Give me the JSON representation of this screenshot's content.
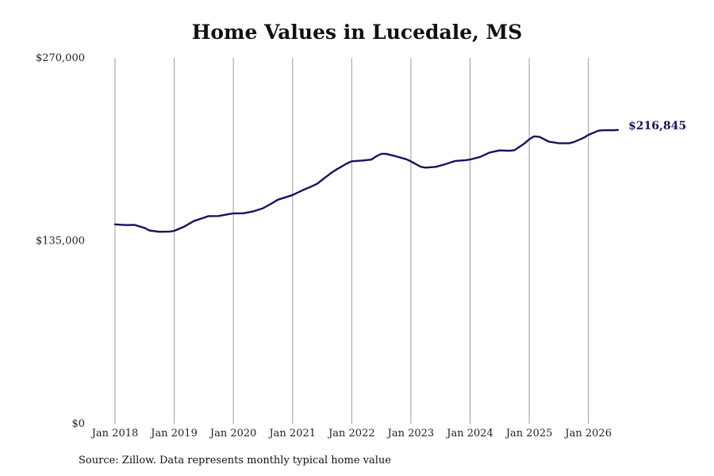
{
  "chart_data": {
    "type": "line",
    "title": "Home Values in Lucedale, MS",
    "xlabel": "",
    "ylabel": "",
    "ylim": [
      0,
      270000
    ],
    "y_ticks": [
      {
        "value": 0,
        "label": "$0"
      },
      {
        "value": 135000,
        "label": "$135,000"
      },
      {
        "value": 270000,
        "label": "$270,000"
      }
    ],
    "x_ticks": [
      {
        "value": 2018.0,
        "label": "Jan 2018"
      },
      {
        "value": 2019.0,
        "label": "Jan 2019"
      },
      {
        "value": 2020.0,
        "label": "Jan 2020"
      },
      {
        "value": 2021.0,
        "label": "Jan 2021"
      },
      {
        "value": 2022.0,
        "label": "Jan 2022"
      },
      {
        "value": 2023.0,
        "label": "Jan 2023"
      },
      {
        "value": 2024.0,
        "label": "Jan 2024"
      },
      {
        "value": 2025.0,
        "label": "Jan 2025"
      },
      {
        "value": 2026.0,
        "label": "Jan 2026"
      }
    ],
    "xlim": [
      2018.0,
      2026.5
    ],
    "grid": "vertical",
    "line_color": "#14145e",
    "grid_color": "#9a9a9a",
    "end_label": "$216,845",
    "series": [
      {
        "points": [
          [
            2018.0,
            147100
          ],
          [
            2018.17,
            146600
          ],
          [
            2018.33,
            146700
          ],
          [
            2018.5,
            144500
          ],
          [
            2018.58,
            142600
          ],
          [
            2018.75,
            141600
          ],
          [
            2018.92,
            141800
          ],
          [
            2019.0,
            142300
          ],
          [
            2019.17,
            145500
          ],
          [
            2019.33,
            149500
          ],
          [
            2019.5,
            152000
          ],
          [
            2019.58,
            153200
          ],
          [
            2019.75,
            153300
          ],
          [
            2019.92,
            154700
          ],
          [
            2020.0,
            155200
          ],
          [
            2020.17,
            155300
          ],
          [
            2020.33,
            156600
          ],
          [
            2020.5,
            159000
          ],
          [
            2020.67,
            163200
          ],
          [
            2020.75,
            165300
          ],
          [
            2020.92,
            167600
          ],
          [
            2021.0,
            168800
          ],
          [
            2021.17,
            172300
          ],
          [
            2021.33,
            175300
          ],
          [
            2021.42,
            177200
          ],
          [
            2021.5,
            180000
          ],
          [
            2021.67,
            185600
          ],
          [
            2021.75,
            187800
          ],
          [
            2021.92,
            192100
          ],
          [
            2022.0,
            193700
          ],
          [
            2022.17,
            194200
          ],
          [
            2022.33,
            194900
          ],
          [
            2022.42,
            197500
          ],
          [
            2022.5,
            199200
          ],
          [
            2022.58,
            199200
          ],
          [
            2022.75,
            197300
          ],
          [
            2022.92,
            195200
          ],
          [
            2023.0,
            193600
          ],
          [
            2023.17,
            189600
          ],
          [
            2023.25,
            189000
          ],
          [
            2023.42,
            189600
          ],
          [
            2023.58,
            191500
          ],
          [
            2023.75,
            193900
          ],
          [
            2023.92,
            194500
          ],
          [
            2024.0,
            195000
          ],
          [
            2024.17,
            196900
          ],
          [
            2024.33,
            200100
          ],
          [
            2024.5,
            201700
          ],
          [
            2024.67,
            201500
          ],
          [
            2024.75,
            201900
          ],
          [
            2024.92,
            206900
          ],
          [
            2025.0,
            209900
          ],
          [
            2025.08,
            212100
          ],
          [
            2025.17,
            211800
          ],
          [
            2025.33,
            208200
          ],
          [
            2025.5,
            207000
          ],
          [
            2025.67,
            207000
          ],
          [
            2025.75,
            207800
          ],
          [
            2025.92,
            211000
          ],
          [
            2026.0,
            213200
          ],
          [
            2026.17,
            216300
          ],
          [
            2026.25,
            216600
          ],
          [
            2026.42,
            216600
          ],
          [
            2026.5,
            216845
          ]
        ]
      }
    ]
  },
  "footer": {
    "source": "Source: Zillow. Data represents monthly typical home value"
  }
}
